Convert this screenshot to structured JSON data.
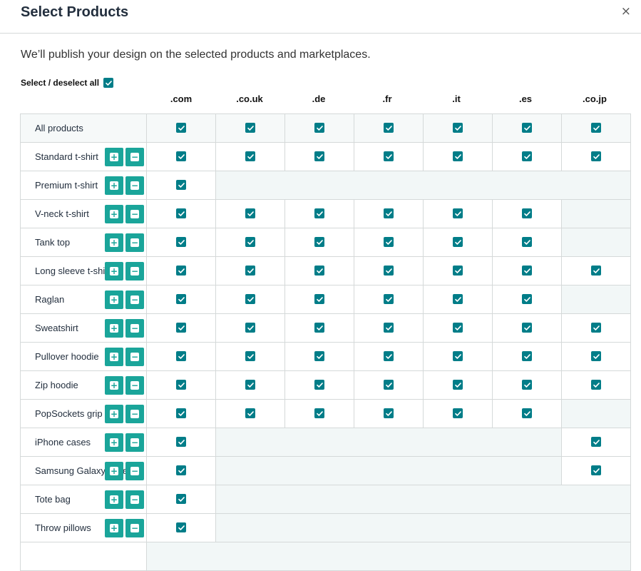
{
  "dialog": {
    "title": "Select Products",
    "close_symbol": "×",
    "description": "We’ll publish your design on the selected products and marketplaces.",
    "select_all_label": "Select / deselect all",
    "select_all_checked": true
  },
  "marketplaces": [
    ".com",
    ".co.uk",
    ".de",
    ".fr",
    ".it",
    ".es",
    ".co.jp"
  ],
  "all_products": {
    "label": "All products",
    "cells": [
      1,
      1,
      1,
      1,
      1,
      1,
      1
    ]
  },
  "products": [
    {
      "name": "Standard t-shirt",
      "cells": [
        1,
        1,
        1,
        1,
        1,
        1,
        1
      ]
    },
    {
      "name": "Premium t-shirt",
      "cells": [
        1,
        0,
        0,
        0,
        0,
        0,
        0
      ]
    },
    {
      "name": "V-neck t-shirt",
      "cells": [
        1,
        1,
        1,
        1,
        1,
        1,
        0
      ]
    },
    {
      "name": "Tank top",
      "cells": [
        1,
        1,
        1,
        1,
        1,
        1,
        0
      ]
    },
    {
      "name": "Long sleeve t-shirt",
      "cells": [
        1,
        1,
        1,
        1,
        1,
        1,
        1
      ]
    },
    {
      "name": "Raglan",
      "cells": [
        1,
        1,
        1,
        1,
        1,
        1,
        0
      ]
    },
    {
      "name": "Sweatshirt",
      "cells": [
        1,
        1,
        1,
        1,
        1,
        1,
        1
      ]
    },
    {
      "name": "Pullover hoodie",
      "cells": [
        1,
        1,
        1,
        1,
        1,
        1,
        1
      ]
    },
    {
      "name": "Zip hoodie",
      "cells": [
        1,
        1,
        1,
        1,
        1,
        1,
        1
      ]
    },
    {
      "name": "PopSockets grip",
      "cells": [
        1,
        1,
        1,
        1,
        1,
        1,
        0
      ]
    },
    {
      "name": "iPhone cases",
      "cells": [
        1,
        0,
        0,
        0,
        0,
        0,
        1
      ]
    },
    {
      "name": "Samsung Galaxy cases",
      "cells": [
        1,
        0,
        0,
        0,
        0,
        0,
        1
      ]
    },
    {
      "name": "Tote bag",
      "cells": [
        1,
        0,
        0,
        0,
        0,
        0,
        0
      ]
    },
    {
      "name": "Throw pillows",
      "cells": [
        1,
        0,
        0,
        0,
        0,
        0,
        0
      ]
    },
    {
      "name": "",
      "cells": [
        0,
        0,
        0,
        0,
        0,
        0,
        0
      ]
    }
  ],
  "icons": {
    "expand": "plus-square-icon",
    "collapse": "minus-square-icon",
    "check": "checkmark-icon"
  },
  "colors": {
    "checkbox": "#007d88",
    "button": "#1aa59a",
    "unavailable_cell": "#f2f7f7",
    "border": "#d5d9d9"
  }
}
